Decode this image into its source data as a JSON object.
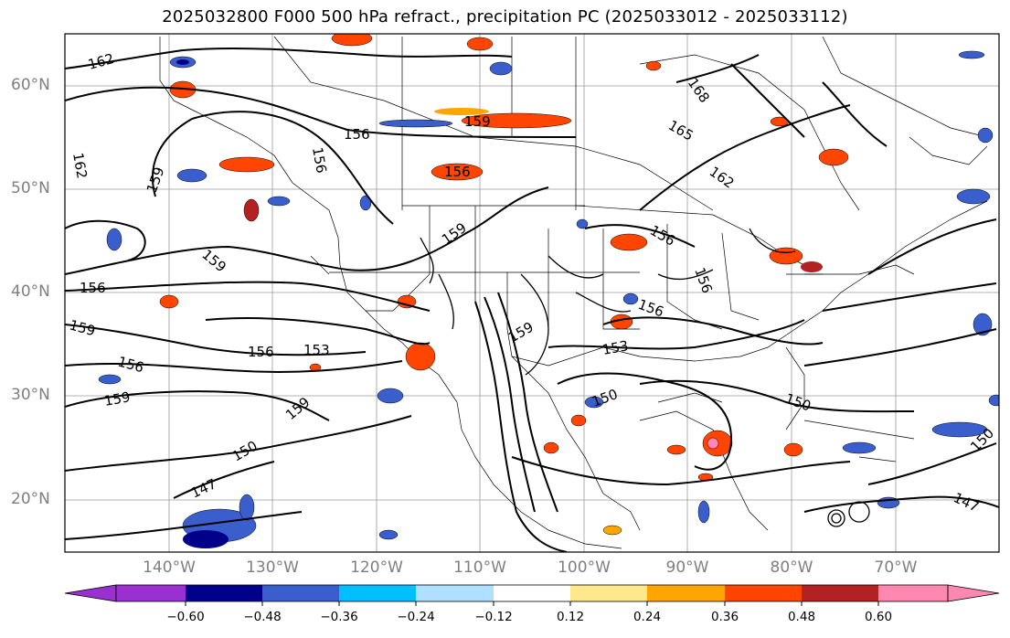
{
  "title": "2025032800 F000 500 hPa refract., precipitation PC (2025033012 - 2025033112)",
  "latitude_labels": [
    "60°N",
    "50°N",
    "40°N",
    "30°N",
    "20°N"
  ],
  "longitude_labels": [
    "140°W",
    "130°W",
    "120°W",
    "110°W",
    "100°W",
    "90°W",
    "80°W",
    "70°W"
  ],
  "contour_labels": [
    "162",
    "168",
    "159",
    "165",
    "156",
    "162",
    "162",
    "159",
    "156",
    "156",
    "159",
    "156",
    "159",
    "156",
    "156",
    "153",
    "159",
    "156",
    "159",
    "153",
    "156",
    "159",
    "159",
    "150",
    "150",
    "150",
    "147",
    "147",
    "156",
    "150"
  ],
  "colorbar": {
    "ticks": [
      "−0.60",
      "−0.48",
      "−0.36",
      "−0.24",
      "−0.12",
      "0.12",
      "0.24",
      "0.36",
      "0.48",
      "0.60"
    ],
    "colors": [
      "#9b30d0",
      "#00008b",
      "#3a5fcd",
      "#00bfff",
      "#b0e0ff",
      "#ffffff",
      "#fde98b",
      "#ffa500",
      "#ff4500",
      "#b22222",
      "#ff88b0"
    ]
  }
}
